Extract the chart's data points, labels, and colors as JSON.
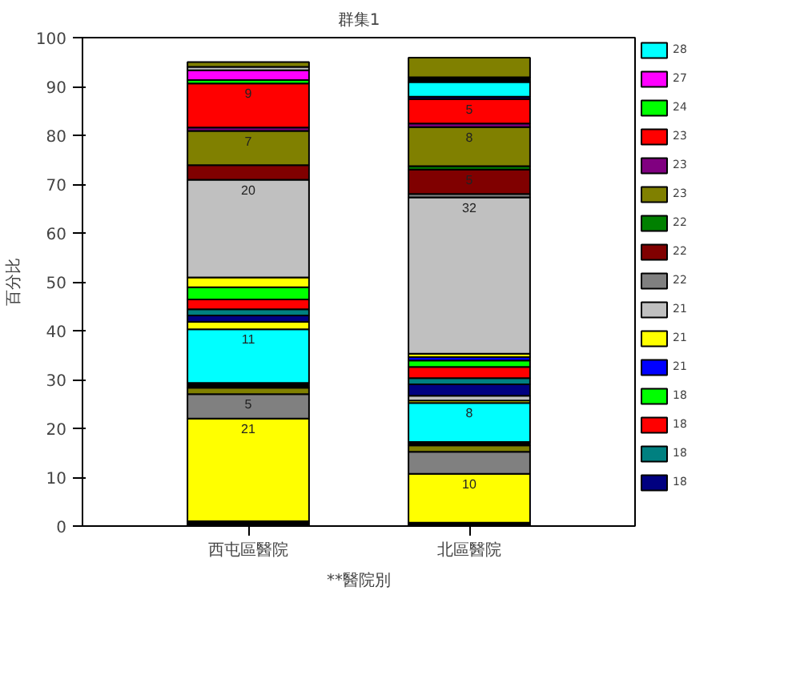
{
  "chart_data": {
    "type": "bar",
    "stacked": true,
    "title": "群集1",
    "xlabel": "**醫院別",
    "ylabel": "百分比",
    "categories": [
      "西屯區醫院",
      "北區醫院"
    ],
    "ylim": [
      0,
      100
    ],
    "yticks": [
      0,
      10,
      20,
      30,
      40,
      50,
      60,
      70,
      80,
      90,
      100
    ],
    "grid": false,
    "legend": "top right",
    "series": [
      {
        "color": "#000000",
        "values": [
          1,
          0.7
        ]
      },
      {
        "color": "#ffff00",
        "values": [
          21,
          10
        ],
        "value_labels": [
          "21",
          "10"
        ]
      },
      {
        "color": "#808080",
        "values": [
          5,
          4.5
        ],
        "value_labels": [
          "5",
          null
        ]
      },
      {
        "color": "#808000",
        "values": [
          1.3,
          1.3
        ]
      },
      {
        "color": "#000000",
        "values": [
          1,
          0.7
        ]
      },
      {
        "color": "#00ffff",
        "values": [
          11,
          8
        ],
        "value_labels": [
          "11",
          "8"
        ]
      },
      {
        "color": "#ffff00",
        "values": [
          1.5,
          0.5
        ]
      },
      {
        "color": "#c0c0c0",
        "values": [
          null,
          1
        ]
      },
      {
        "name": "18",
        "color": "#000080",
        "values": [
          1.3,
          2.3
        ]
      },
      {
        "name": "18",
        "color": "#008080",
        "values": [
          1.3,
          1.3
        ]
      },
      {
        "name": "18",
        "color": "#ff0000",
        "values": [
          2,
          2.3
        ]
      },
      {
        "name": "18",
        "color": "#00ff00",
        "values": [
          2.5,
          1.3
        ]
      },
      {
        "name": "21",
        "color": "#0000ff",
        "values": [
          null,
          0.7
        ]
      },
      {
        "name": "21",
        "color": "#ffff00",
        "values": [
          2,
          0.7
        ]
      },
      {
        "name": "21",
        "color": "#c0c0c0",
        "values": [
          20,
          32
        ],
        "value_labels": [
          "20",
          "32"
        ]
      },
      {
        "name": "22",
        "color": "#808080",
        "values": [
          null,
          0.7
        ]
      },
      {
        "name": "22",
        "color": "#800000",
        "values": [
          3,
          5
        ],
        "value_labels": [
          null,
          "5"
        ]
      },
      {
        "name": "22",
        "color": "#008000",
        "values": [
          null,
          0.7
        ]
      },
      {
        "name": "23",
        "color": "#808000",
        "values": [
          7,
          8
        ],
        "value_labels": [
          "7",
          "8"
        ]
      },
      {
        "name": "23",
        "color": "#800080",
        "values": [
          0.7,
          0.7
        ]
      },
      {
        "name": "23",
        "color": "#ff0000",
        "values": [
          9,
          5
        ],
        "value_labels": [
          "9",
          "5"
        ]
      },
      {
        "name": "24",
        "color": "#00ff00",
        "values": [
          0.7,
          null
        ]
      },
      {
        "color": "#000080",
        "values": [
          null,
          0.5
        ]
      },
      {
        "name": "27",
        "color": "#ff00ff",
        "values": [
          2,
          null
        ]
      },
      {
        "name": "28",
        "color": "#00ffff",
        "values": [
          null,
          3
        ]
      },
      {
        "color": "#c0c0c0",
        "values": [
          0.7,
          null
        ]
      },
      {
        "color": "#000000",
        "values": [
          null,
          1
        ]
      },
      {
        "color": "#808000",
        "values": [
          1,
          4
        ]
      }
    ]
  }
}
